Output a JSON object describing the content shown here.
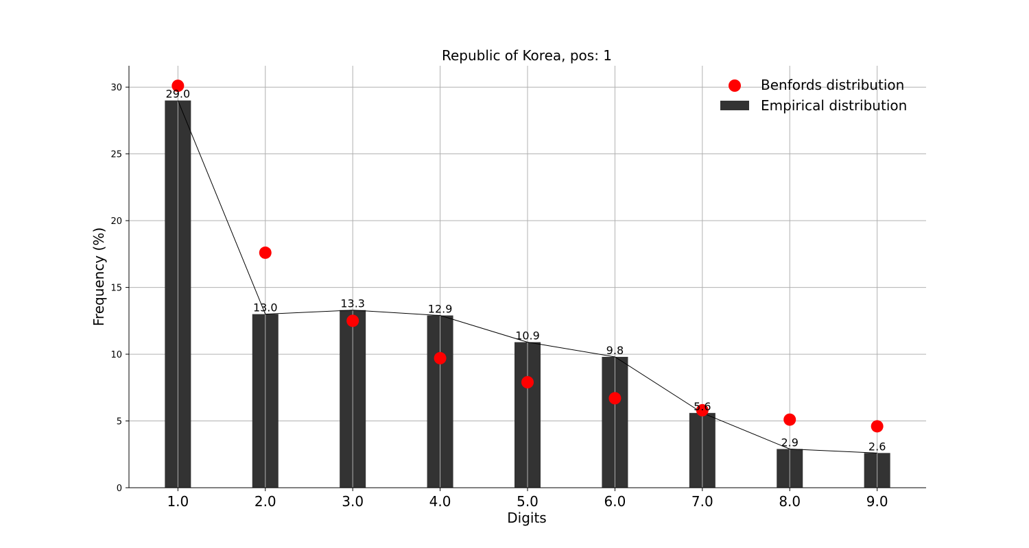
{
  "chart_data": {
    "type": "bar",
    "title": "Republic of Korea, pos: 1",
    "xlabel": "Digits",
    "ylabel": "Frequency (%)",
    "categories": [
      "1.0",
      "2.0",
      "3.0",
      "4.0",
      "5.0",
      "6.0",
      "7.0",
      "8.0",
      "9.0"
    ],
    "x": [
      1,
      2,
      3,
      4,
      5,
      6,
      7,
      8,
      9
    ],
    "series": [
      {
        "name": "Empirical distribution",
        "kind": "bar",
        "values": [
          29.0,
          13.0,
          13.3,
          12.9,
          10.9,
          9.8,
          5.6,
          2.9,
          2.6
        ],
        "labels": [
          "29.0",
          "13.0",
          "13.3",
          "12.9",
          "10.9",
          "9.8",
          "5.6",
          "2.9",
          "2.6"
        ],
        "color": "#333333"
      },
      {
        "name": "Benfords distribution",
        "kind": "scatter",
        "values": [
          30.1,
          17.6,
          12.5,
          9.7,
          7.9,
          6.7,
          5.8,
          5.1,
          4.6
        ],
        "color": "#ff0000"
      }
    ],
    "line": {
      "values": [
        29.0,
        13.0,
        13.3,
        12.9,
        10.9,
        9.8,
        5.6,
        2.9,
        2.6
      ],
      "color": "#000000"
    },
    "yticks": [
      0,
      5,
      10,
      15,
      20,
      25,
      30
    ],
    "ylim": [
      0,
      31.6
    ],
    "xlim": [
      0.44,
      9.56
    ],
    "grid": true,
    "legend_position": "top-right"
  }
}
